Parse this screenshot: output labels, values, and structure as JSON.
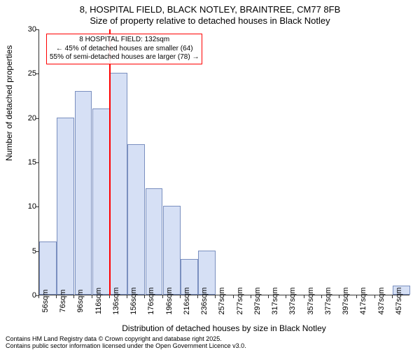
{
  "title_main": "8, HOSPITAL FIELD, BLACK NOTLEY, BRAINTREE, CM77 8FB",
  "title_sub": "Size of property relative to detached houses in Black Notley",
  "ylabel": "Number of detached properties",
  "xlabel": "Distribution of detached houses by size in Black Notley",
  "footer_line1": "Contains HM Land Registry data © Crown copyright and database right 2025.",
  "footer_line2": "Contains public sector information licensed under the Open Government Licence v3.0.",
  "chart": {
    "type": "histogram",
    "ylim": [
      0,
      30
    ],
    "ytick_step": 5,
    "bar_fill": "#d6e0f5",
    "bar_stroke": "#7a8fbf",
    "background_color": "#ffffff",
    "axis_color": "#333333",
    "reference_line_color": "#ff0000",
    "reference_x_index": 4,
    "annotation": {
      "border_color": "#ff0000",
      "text_color": "#000000",
      "line1": "8 HOSPITAL FIELD: 132sqm",
      "line2": "← 45% of detached houses are smaller (64)",
      "line3": "55% of semi-detached houses are larger (78) →"
    },
    "x_labels": [
      "56sqm",
      "76sqm",
      "96sqm",
      "116sqm",
      "136sqm",
      "156sqm",
      "176sqm",
      "196sqm",
      "216sqm",
      "236sqm",
      "257sqm",
      "277sqm",
      "297sqm",
      "317sqm",
      "337sqm",
      "357sqm",
      "377sqm",
      "397sqm",
      "417sqm",
      "437sqm",
      "457sqm"
    ],
    "values": [
      6,
      20,
      23,
      21,
      25,
      17,
      12,
      10,
      4,
      5,
      0,
      0,
      0,
      0,
      0,
      0,
      0,
      0,
      0,
      0,
      1
    ],
    "bar_width_ratio": 0.98,
    "tick_fontsize": 11,
    "label_fontsize": 12,
    "title_fontsize": 13
  }
}
